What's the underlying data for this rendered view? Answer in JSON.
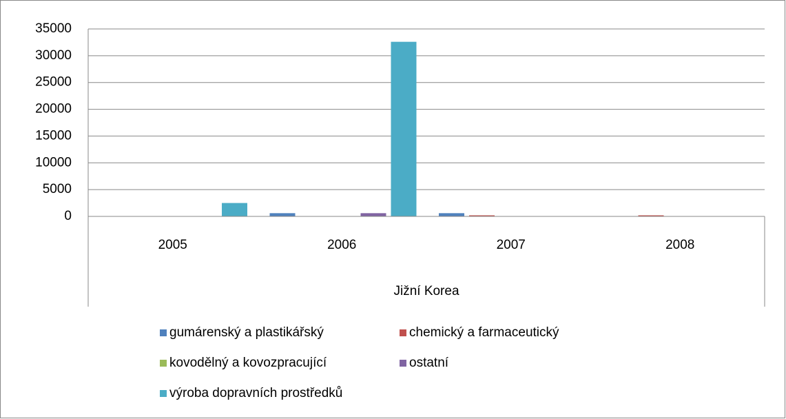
{
  "chart_data": {
    "type": "bar",
    "categories": [
      "2005",
      "2006",
      "2007",
      "2008"
    ],
    "x_label": "Jižní Korea",
    "series": [
      {
        "name": "gumárenský a plastikářský",
        "color": "#4f81bd",
        "values": [
          0,
          600,
          600,
          0
        ]
      },
      {
        "name": "chemický a farmaceutický",
        "color": "#c0504d",
        "values": [
          0,
          0,
          200,
          200
        ]
      },
      {
        "name": "kovodělný a kovozpracující",
        "color": "#9bbb59",
        "values": [
          0,
          0,
          0,
          0
        ]
      },
      {
        "name": "ostatní",
        "color": "#8064a2",
        "values": [
          0,
          600,
          0,
          0
        ]
      },
      {
        "name": "výroba dopravních prostředků",
        "color": "#4bacc6",
        "values": [
          2500,
          32600,
          0,
          0
        ]
      }
    ],
    "ylim": [
      0,
      35000
    ],
    "yticks": [
      0,
      5000,
      10000,
      15000,
      20000,
      25000,
      30000,
      35000
    ],
    "grid": true
  }
}
